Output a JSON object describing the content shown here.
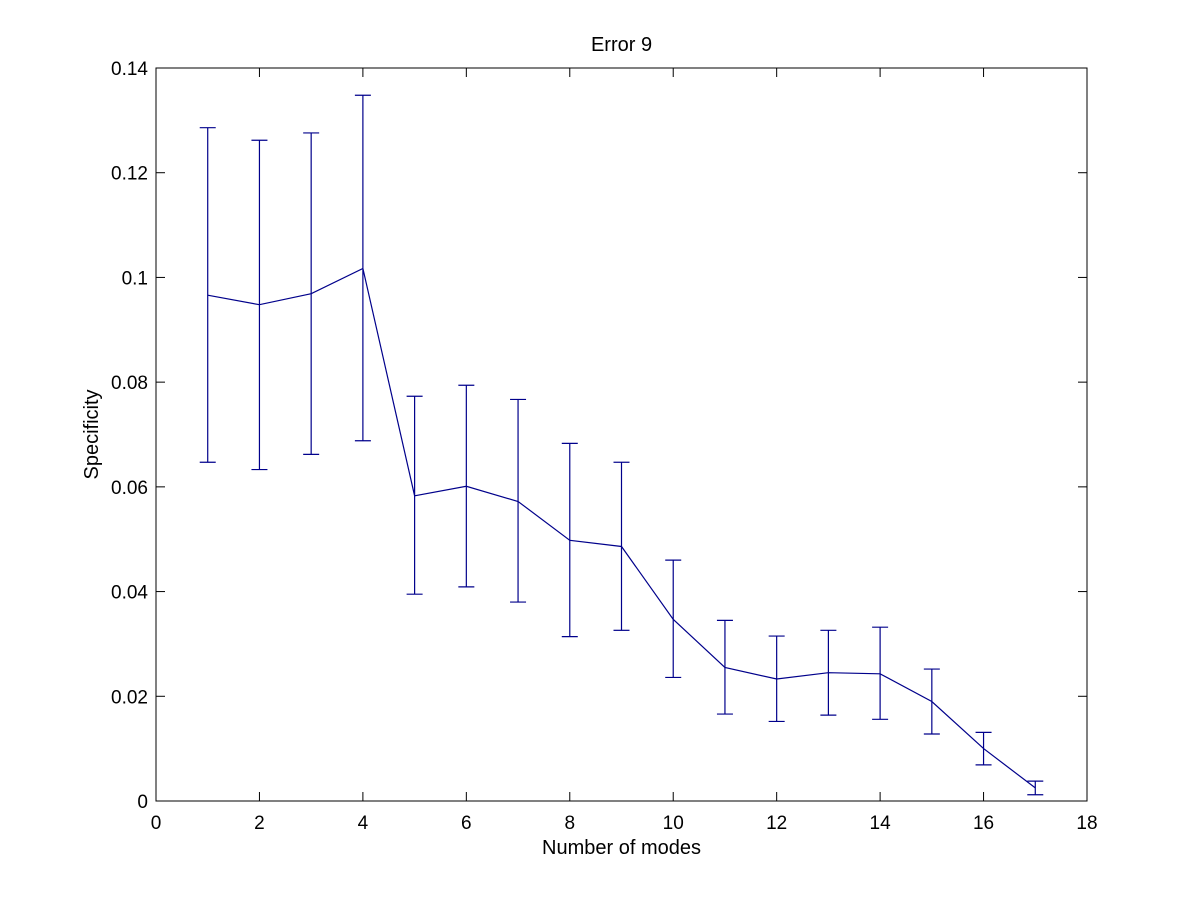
{
  "chart_data": {
    "type": "line",
    "title": "Error 9",
    "xlabel": "Number of modes",
    "ylabel": "Specificity",
    "xlim": [
      0,
      18
    ],
    "ylim": [
      0,
      0.14
    ],
    "xticks": [
      0,
      2,
      4,
      6,
      8,
      10,
      12,
      14,
      16,
      18
    ],
    "yticks": [
      0,
      0.02,
      0.04,
      0.06,
      0.08,
      0.1,
      0.12,
      0.14
    ],
    "xtick_labels": [
      "0",
      "2",
      "4",
      "6",
      "8",
      "10",
      "12",
      "14",
      "16",
      "18"
    ],
    "ytick_labels": [
      "0",
      "0.02",
      "0.04",
      "0.06",
      "0.08",
      "0.1",
      "0.12",
      "0.14"
    ],
    "grid": false,
    "legend": null,
    "line_color": "#00008b",
    "series": [
      {
        "x": [
          1,
          2,
          3,
          4,
          5,
          6,
          7,
          8,
          9,
          10,
          11,
          12,
          13,
          14,
          15,
          16,
          17
        ],
        "y": [
          0.0966,
          0.0948,
          0.0969,
          0.1017,
          0.0583,
          0.0601,
          0.0572,
          0.0498,
          0.0486,
          0.0347,
          0.0255,
          0.0233,
          0.0245,
          0.0243,
          0.019,
          0.01,
          0.0025
        ],
        "error_low": [
          0.0647,
          0.0633,
          0.0662,
          0.0688,
          0.0395,
          0.0409,
          0.038,
          0.0314,
          0.0326,
          0.0236,
          0.0166,
          0.0152,
          0.0164,
          0.0156,
          0.0128,
          0.0069,
          0.0012
        ],
        "error_high": [
          0.1286,
          0.1262,
          0.1276,
          0.1348,
          0.0773,
          0.0794,
          0.0767,
          0.0683,
          0.0647,
          0.046,
          0.0345,
          0.0315,
          0.0326,
          0.0332,
          0.0252,
          0.0131,
          0.0038
        ]
      }
    ]
  }
}
